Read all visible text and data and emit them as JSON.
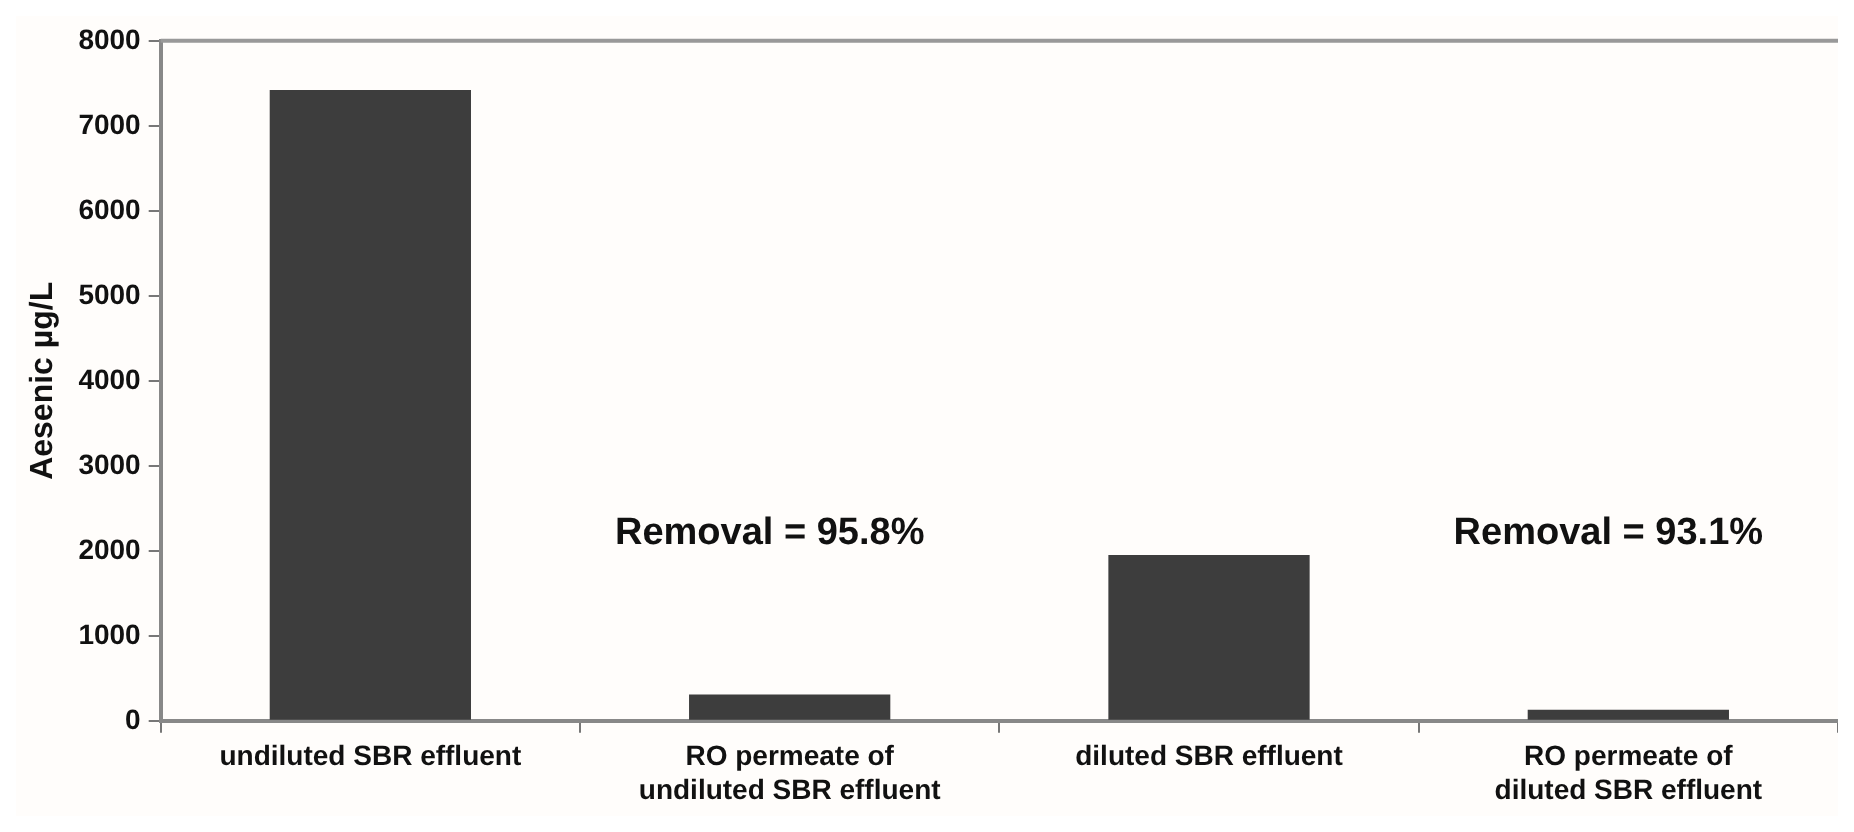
{
  "chart_data": {
    "type": "bar",
    "ylabel": "Aesenic µg/L",
    "categories": [
      "undiluted SBR effluent",
      "RO permeate of\nundiluted SBR effluent",
      "diluted SBR effluent",
      "RO permeate of\ndiluted SBR effluent"
    ],
    "values": [
      7420,
      310,
      1950,
      130
    ],
    "color": "#3d3d3d",
    "ylim": [
      0,
      8000
    ],
    "yticks": [
      0,
      1000,
      2000,
      3000,
      4000,
      5000,
      6000,
      7000,
      8000
    ],
    "grid": false,
    "annotations": [
      "Removal = 95.8%",
      "Removal = 93.1%"
    ]
  }
}
